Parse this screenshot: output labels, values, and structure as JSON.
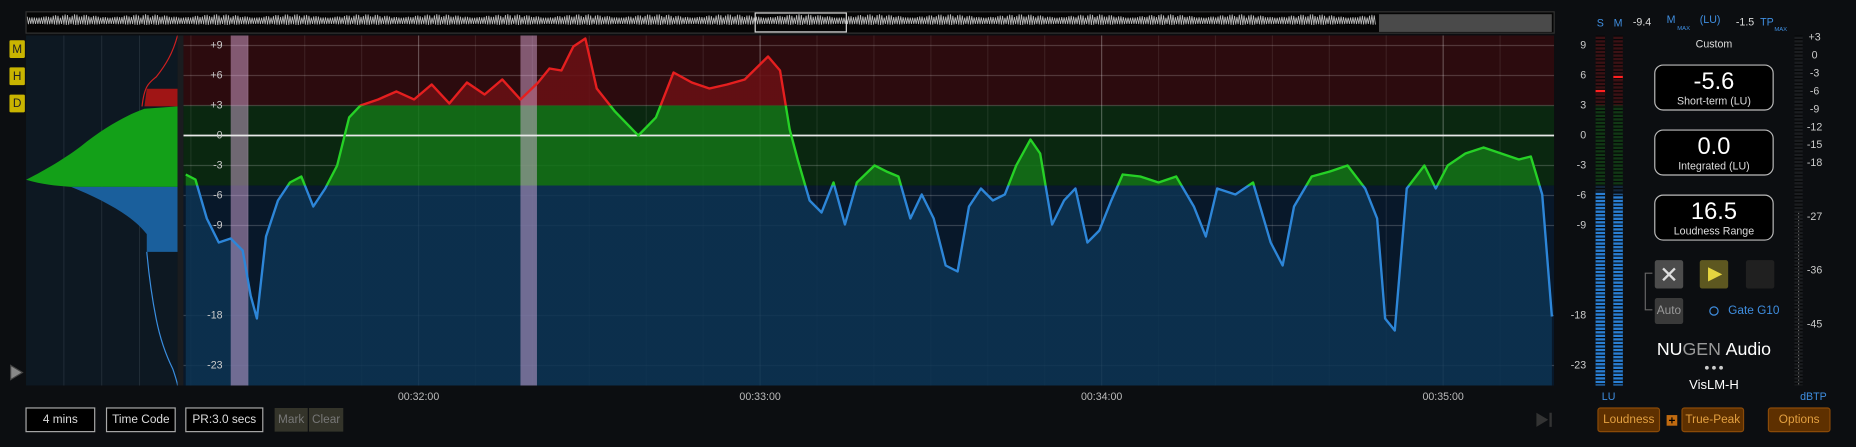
{
  "zone_buttons": [
    "M",
    "H",
    "D"
  ],
  "graph": {
    "type": "line",
    "ylim": [
      -25,
      10
    ],
    "yticks": [
      {
        "value": 9,
        "label": "+9"
      },
      {
        "value": 6,
        "label": "+6"
      },
      {
        "value": 3,
        "label": "+3"
      },
      0,
      -3,
      -6,
      -9,
      -18,
      -23
    ],
    "xlim": [
      1878.7,
      2119.5
    ],
    "xticks": [
      {
        "value": 1920,
        "label": "00:32:00"
      },
      {
        "value": 1980,
        "label": "00:33:00"
      },
      {
        "value": 2040,
        "label": "00:34:00"
      },
      {
        "value": 2100,
        "label": "00:35:00"
      }
    ],
    "zones": [
      {
        "from": 3,
        "to": 10,
        "fill": "#2c0b0e",
        "area": "#6a1014",
        "line": "#e51f1f"
      },
      {
        "from": -5,
        "to": 3,
        "fill": "#0a2710",
        "area": "#137417",
        "line": "#26d126"
      },
      {
        "from": -25,
        "to": -5,
        "fill": "#08182a",
        "area": "#0c3352",
        "line": "#2d86d8"
      }
    ],
    "markers": [
      {
        "from": 1887,
        "to": 1890.1
      },
      {
        "from": 1937.9,
        "to": 1940.8
      }
    ],
    "x": [
      1879.1,
      1880.8,
      1882.8,
      1884.9,
      1887.0,
      1889.1,
      1890.5,
      1891.6,
      1893.2,
      1895.3,
      1897.4,
      1899.4,
      1901.5,
      1903.6,
      1905.7,
      1907.8,
      1909.8,
      1912.9,
      1916.1,
      1919.2,
      1922.3,
      1925.4,
      1928.5,
      1931.6,
      1934.7,
      1937.9,
      1941.0,
      1943.0,
      1945.1,
      1947.2,
      1949.3,
      1951.3,
      1954.5,
      1958.6,
      1961.7,
      1964.8,
      1968.0,
      1971.1,
      1974.2,
      1977.3,
      1981.4,
      1983.5,
      1985.2,
      1986.6,
      1988.7,
      1990.8,
      1992.9,
      1994.9,
      1997.0,
      2000.1,
      2002.2,
      2004.3,
      2006.4,
      2008.4,
      2010.5,
      2012.6,
      2014.7,
      2016.7,
      2018.8,
      2020.9,
      2023.0,
      2025.0,
      2027.5,
      2029.2,
      2031.3,
      2033.4,
      2035.4,
      2037.5,
      2039.6,
      2041.7,
      2043.7,
      2046.8,
      2050.0,
      2053.1,
      2056.2,
      2058.3,
      2060.3,
      2063.5,
      2066.6,
      2069.7,
      2071.8,
      2073.8,
      2076.9,
      2080.1,
      2083.2,
      2086.3,
      2088.4,
      2089.8,
      2091.5,
      2093.6,
      2096.7,
      2098.7,
      2100.8,
      2103.9,
      2107.1,
      2110.2,
      2113.3,
      2115.4,
      2117.4,
      2119.1
    ],
    "y": [
      -3.9,
      -4.4,
      -8.3,
      -10.7,
      -10.3,
      -11.5,
      -16.0,
      -18.3,
      -10.1,
      -6.5,
      -4.7,
      -4.1,
      -7.1,
      -5.3,
      -3.0,
      1.8,
      3.0,
      3.6,
      4.4,
      3.6,
      5.1,
      3.2,
      5.3,
      4.1,
      5.6,
      3.6,
      5.3,
      6.7,
      6.5,
      8.9,
      9.7,
      4.7,
      2.4,
      0,
      1.8,
      6.3,
      5.3,
      4.7,
      5.1,
      5.6,
      7.9,
      6.5,
      0.6,
      -2.4,
      -6.5,
      -7.7,
      -4.7,
      -8.9,
      -4.7,
      -3.0,
      -3.6,
      -4.1,
      -8.3,
      -5.9,
      -8.3,
      -13.0,
      -13.6,
      -7.1,
      -5.3,
      -6.5,
      -5.9,
      -3.0,
      -0.4,
      -1.8,
      -8.9,
      -6.5,
      -5.3,
      -10.7,
      -9.5,
      -6.5,
      -3.9,
      -4.1,
      -4.7,
      -4.1,
      -7.1,
      -10.1,
      -5.3,
      -5.9,
      -4.7,
      -10.7,
      -13.0,
      -7.1,
      -4.1,
      -3.6,
      -3.0,
      -5.3,
      -8.3,
      -18.3,
      -19.5,
      -5.3,
      -3.0,
      -5.3,
      -3.0,
      -1.8,
      -1.2,
      -1.8,
      -2.4,
      -2.1,
      -5.9,
      -18.1
    ]
  },
  "meters": {
    "ticks": [
      9,
      6,
      3,
      0,
      -3,
      -6,
      -9,
      -18,
      -23
    ],
    "unit": "LU",
    "channels": [
      {
        "name": "S",
        "value": -5.6,
        "peak": 4.4
      },
      {
        "name": "M",
        "value": -5.9,
        "peak": 5.8
      }
    ]
  },
  "tp_meter": {
    "ylim": [
      -55.2,
      3.4
    ],
    "ticks": [
      {
        "value": 3,
        "label": "+3"
      },
      0,
      -3,
      -6,
      -9,
      -12,
      -15,
      -18,
      -27,
      -36,
      -45
    ],
    "unit": "dBTP"
  },
  "readouts": {
    "m_max": "-9.4",
    "m_label": "M",
    "max_sub": "MAX",
    "lu_unit": "(LU)",
    "tp_max": "-1.5",
    "tp_label": "TP",
    "preset": "Custom",
    "panels": [
      {
        "value": "-5.6",
        "label": "Short-term (LU)"
      },
      {
        "value": "0.0",
        "label": "Integrated (LU)"
      },
      {
        "value": "16.5",
        "label": "Loudness Range"
      }
    ]
  },
  "controls": {
    "auto": "Auto",
    "gate": "Gate G10",
    "brand_a": "NU",
    "brand_b": "GEN",
    "brand_c": "Audio",
    "product": "VisLM-H"
  },
  "toolbar": {
    "range": "4 mins",
    "time_mode": "Time Code",
    "pr": "PR:3.0 secs",
    "mark": "Mark",
    "clear": "Clear",
    "loudness": "Loudness",
    "true_peak": "True-Peak",
    "options": "Options"
  }
}
